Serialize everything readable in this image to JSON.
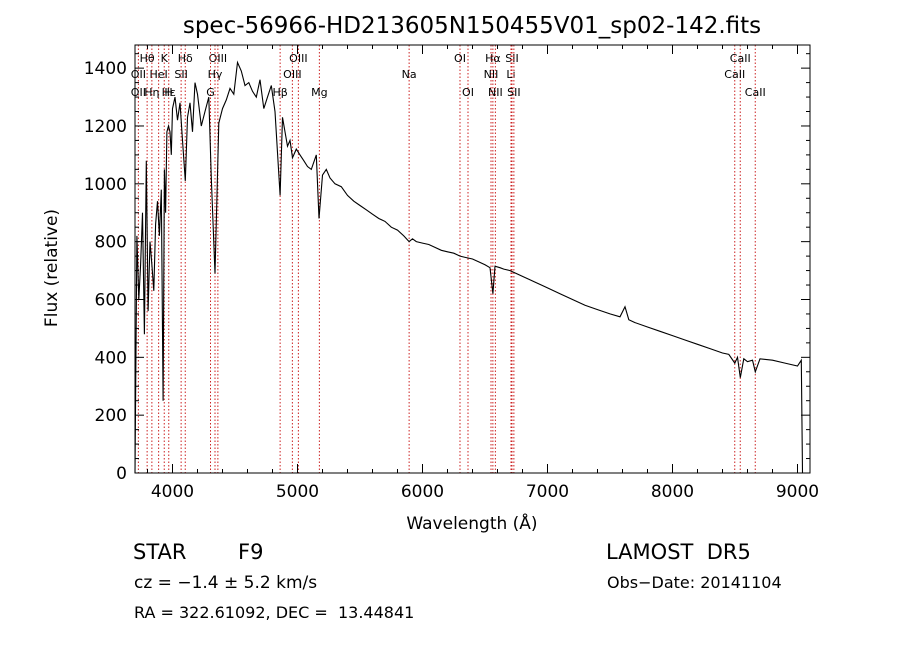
{
  "chart_data": {
    "type": "line",
    "title": "spec-56966-HD213605N150455V01_sp02-142.fits",
    "xlabel": "Wavelength (Å)",
    "ylabel": "Flux (relative)",
    "xlim": [
      3700,
      9100
    ],
    "ylim": [
      0,
      1480
    ],
    "x_ticks": [
      4000,
      5000,
      6000,
      7000,
      8000,
      9000
    ],
    "y_ticks": [
      0,
      200,
      400,
      600,
      800,
      1000,
      1200,
      1400
    ],
    "grid": false,
    "line_color": "#000000",
    "marker_color": "#cc2222",
    "series": [
      {
        "x": [
          3700,
          3715,
          3730,
          3745,
          3760,
          3775,
          3790,
          3805,
          3820,
          3835,
          3850,
          3865,
          3880,
          3895,
          3910,
          3925,
          3935,
          3945,
          3955,
          3968,
          3980,
          3990,
          4000,
          4020,
          4040,
          4060,
          4080,
          4102,
          4120,
          4140,
          4160,
          4180,
          4200,
          4230,
          4260,
          4290,
          4310,
          4340,
          4370,
          4400,
          4430,
          4460,
          4490,
          4520,
          4550,
          4580,
          4610,
          4640,
          4670,
          4700,
          4730,
          4760,
          4790,
          4820,
          4861,
          4880,
          4900,
          4920,
          4940,
          4960,
          4990,
          5020,
          5050,
          5080,
          5110,
          5150,
          5172,
          5200,
          5230,
          5260,
          5300,
          5350,
          5400,
          5450,
          5500,
          5550,
          5600,
          5650,
          5700,
          5750,
          5800,
          5850,
          5893,
          5920,
          5950,
          6000,
          6050,
          6100,
          6150,
          6200,
          6250,
          6300,
          6350,
          6400,
          6450,
          6500,
          6540,
          6563,
          6580,
          6620,
          6650,
          6700,
          6750,
          6800,
          6850,
          6900,
          6950,
          7000,
          7100,
          7200,
          7300,
          7400,
          7500,
          7580,
          7620,
          7650,
          7700,
          7800,
          7900,
          8000,
          8100,
          8200,
          8300,
          8400,
          8450,
          8498,
          8520,
          8542,
          8570,
          8600,
          8640,
          8662,
          8700,
          8800,
          8900,
          9000,
          9030,
          9040
        ],
        "y": [
          0,
          820,
          600,
          720,
          900,
          480,
          1080,
          560,
          800,
          720,
          630,
          860,
          940,
          820,
          980,
          250,
          1050,
          900,
          1180,
          1200,
          1180,
          1100,
          1260,
          1300,
          1220,
          1280,
          1150,
          1010,
          1230,
          1280,
          1180,
          1350,
          1310,
          1200,
          1250,
          1300,
          1020,
          690,
          1210,
          1260,
          1290,
          1330,
          1310,
          1420,
          1390,
          1340,
          1350,
          1320,
          1300,
          1360,
          1260,
          1300,
          1340,
          1250,
          960,
          1230,
          1180,
          1130,
          1150,
          1090,
          1120,
          1100,
          1080,
          1060,
          1050,
          1100,
          880,
          1030,
          1050,
          1020,
          1000,
          990,
          960,
          940,
          925,
          910,
          895,
          880,
          870,
          850,
          840,
          820,
          800,
          810,
          800,
          795,
          790,
          780,
          770,
          765,
          760,
          750,
          745,
          740,
          730,
          720,
          710,
          620,
          715,
          710,
          705,
          700,
          690,
          680,
          670,
          660,
          650,
          640,
          620,
          600,
          580,
          565,
          550,
          540,
          575,
          530,
          520,
          505,
          490,
          475,
          460,
          445,
          430,
          415,
          410,
          380,
          400,
          330,
          395,
          385,
          390,
          350,
          395,
          390,
          380,
          370,
          390,
          0
        ]
      }
    ],
    "line_markers": [
      {
        "label": "Hβ",
        "x": 4861,
        "row": 3
      },
      {
        "label": "Hε",
        "x": 3970,
        "row": 3
      },
      {
        "label": "Hθ",
        "x": 3797,
        "row": 1
      },
      {
        "label": "K",
        "x": 3934,
        "row": 1
      },
      {
        "label": "Hδ",
        "x": 4102,
        "row": 1
      },
      {
        "label": "OII",
        "x": 3727,
        "row": 2
      },
      {
        "label": "HeI",
        "x": 3889,
        "row": 2
      },
      {
        "label": "SII",
        "x": 4069,
        "row": 2
      },
      {
        "label": "OII",
        "x": 3727,
        "row": 3
      },
      {
        "label": "Hη",
        "x": 3835,
        "row": 3
      },
      {
        "label": "H",
        "x": 3968,
        "row": 3
      },
      {
        "label": "OIII",
        "x": 4363,
        "row": 1
      },
      {
        "label": "Hγ",
        "x": 4340,
        "row": 2
      },
      {
        "label": "G",
        "x": 4304,
        "row": 3
      },
      {
        "label": "OIII",
        "x": 5007,
        "row": 1
      },
      {
        "label": "OIII",
        "x": 4959,
        "row": 2
      },
      {
        "label": "Mg",
        "x": 5175,
        "row": 3
      },
      {
        "label": "Na",
        "x": 5893,
        "row": 2
      },
      {
        "label": "OI",
        "x": 6300,
        "row": 1
      },
      {
        "label": "OI",
        "x": 6364,
        "row": 3
      },
      {
        "label": "Hα",
        "x": 6563,
        "row": 1
      },
      {
        "label": "SII",
        "x": 6716,
        "row": 1
      },
      {
        "label": "NII",
        "x": 6548,
        "row": 2
      },
      {
        "label": "Li",
        "x": 6708,
        "row": 2
      },
      {
        "label": "NII",
        "x": 6583,
        "row": 3
      },
      {
        "label": "SII",
        "x": 6731,
        "row": 3
      },
      {
        "label": "CaII",
        "x": 8542,
        "row": 1
      },
      {
        "label": "CaII",
        "x": 8498,
        "row": 2
      },
      {
        "label": "CaII",
        "x": 8662,
        "row": 3
      }
    ]
  },
  "info": {
    "object_type": "STAR",
    "subclass": "F9",
    "survey": "LAMOST  DR5",
    "redshift_line": "cz = −1.4 ± 5.2 km/s",
    "obs_date": "Obs−Date: 20141104",
    "coords": "RA = 322.61092, DEC =  13.44841"
  }
}
